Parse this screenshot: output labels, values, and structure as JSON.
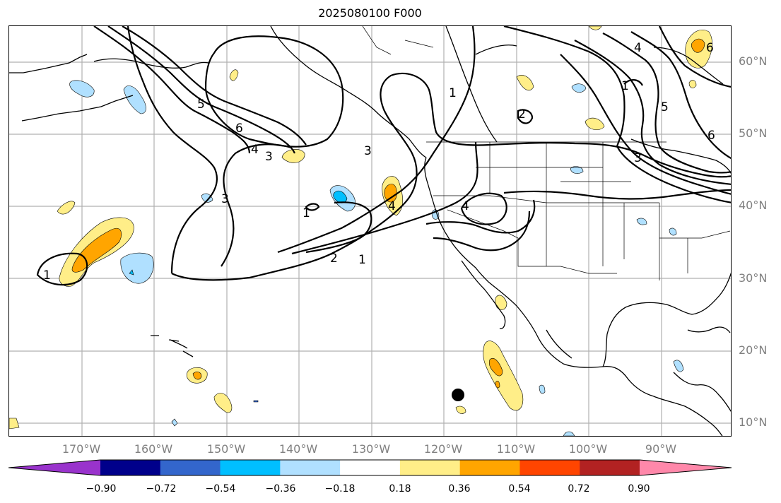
{
  "title": "2025080100 F000",
  "lat_labels": [
    "60°N",
    "50°N",
    "40°N",
    "30°N",
    "20°N",
    "10°N"
  ],
  "lon_labels": [
    "170°W",
    "160°W",
    "150°W",
    "140°W",
    "130°W",
    "120°W",
    "110°W",
    "100°W",
    "90°W"
  ],
  "colorbar": {
    "colors": [
      "#9933cc",
      "#00008b",
      "#3366cc",
      "#00bfff",
      "#b0e0ff",
      "#ffffff",
      "#ffee88",
      "#ffa500",
      "#ff4500",
      "#b22222",
      "#ff88aa"
    ],
    "ticks": [
      "−0.90",
      "−0.72",
      "−0.54",
      "−0.36",
      "−0.18",
      "0.18",
      "0.36",
      "0.54",
      "0.72",
      "0.90"
    ]
  },
  "contour_labels": [
    "1",
    "2",
    "3",
    "4",
    "5",
    "6"
  ],
  "marker": "black-dot"
}
